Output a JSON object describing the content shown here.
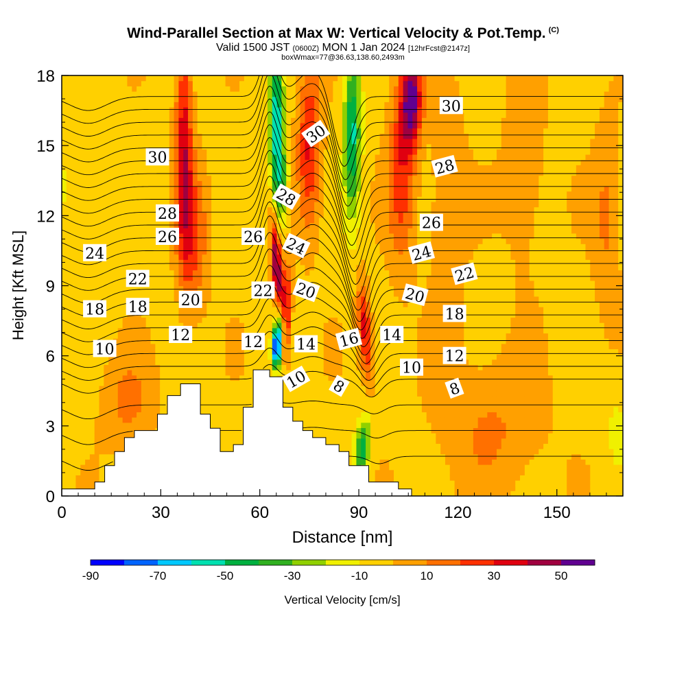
{
  "header": {
    "title": "Wind-Parallel Section at Max W: Vertical Velocity & Pot.Temp.",
    "title_mark": "(C)",
    "valid_prefix": "Valid 1500 JST",
    "valid_utc": "(0600Z)",
    "valid_date": "MON 1 Jan 2024",
    "forecast": "[12hrFcst@2147z]",
    "box_info": "boxWmax=77@36.63,138.60,2493m"
  },
  "chart_data": {
    "type": "heatmap",
    "xlabel": "Distance [nm]",
    "ylabel": "Height [Kft MSL]",
    "xlim": [
      0,
      170
    ],
    "ylim": [
      0,
      18
    ],
    "xticks": [
      0,
      30,
      60,
      90,
      120,
      150
    ],
    "yticks": [
      0,
      3,
      6,
      9,
      12,
      15,
      18
    ],
    "colorbar": {
      "label": "Vertical Velocity [cm/s]",
      "levels": [
        -90,
        -80,
        -70,
        -60,
        -50,
        -40,
        -30,
        -20,
        -10,
        0,
        10,
        20,
        30,
        40,
        50,
        60
      ],
      "tick_labels": [
        "-90",
        "-70",
        "-50",
        "-30",
        "-10",
        "10",
        "30",
        "50"
      ],
      "tick_values": [
        -90,
        -70,
        -50,
        -30,
        -10,
        10,
        30,
        50
      ],
      "colors": [
        "#0000ff",
        "#0064ff",
        "#00c8ff",
        "#00e0b0",
        "#00b040",
        "#30b020",
        "#90d000",
        "#f0f000",
        "#ffd000",
        "#ffa000",
        "#ff7000",
        "#ff3000",
        "#e00010",
        "#a00040",
        "#600090"
      ]
    },
    "terrain": [
      [
        0,
        0.3
      ],
      [
        10,
        0.3
      ],
      [
        10,
        0.6
      ],
      [
        13,
        0.6
      ],
      [
        13,
        1.3
      ],
      [
        16,
        1.3
      ],
      [
        16,
        1.9
      ],
      [
        19,
        1.9
      ],
      [
        19,
        2.5
      ],
      [
        22,
        2.5
      ],
      [
        22,
        2.8
      ],
      [
        29,
        2.8
      ],
      [
        29,
        3.5
      ],
      [
        32,
        3.5
      ],
      [
        32,
        4.3
      ],
      [
        36,
        4.3
      ],
      [
        36,
        4.8
      ],
      [
        42,
        4.8
      ],
      [
        42,
        3.5
      ],
      [
        45,
        3.5
      ],
      [
        45,
        2.9
      ],
      [
        48,
        2.9
      ],
      [
        48,
        1.9
      ],
      [
        52,
        1.9
      ],
      [
        52,
        2.2
      ],
      [
        55,
        2.2
      ],
      [
        55,
        3.8
      ],
      [
        58,
        3.8
      ],
      [
        58,
        5.4
      ],
      [
        63,
        5.4
      ],
      [
        63,
        5.1
      ],
      [
        67,
        5.1
      ],
      [
        67,
        3.8
      ],
      [
        70,
        3.8
      ],
      [
        70,
        3.2
      ],
      [
        73,
        3.2
      ],
      [
        73,
        2.8
      ],
      [
        76,
        2.8
      ],
      [
        76,
        2.5
      ],
      [
        80,
        2.5
      ],
      [
        80,
        2.2
      ],
      [
        84,
        2.2
      ],
      [
        84,
        1.9
      ],
      [
        87,
        1.9
      ],
      [
        87,
        1.3
      ],
      [
        93,
        1.3
      ],
      [
        93,
        0.6
      ],
      [
        102,
        0.6
      ],
      [
        102,
        0.3
      ],
      [
        106,
        0.3
      ],
      [
        106,
        0
      ],
      [
        170,
        0
      ]
    ],
    "w_features": [
      {
        "x": 37,
        "y": 15,
        "w": 40,
        "sx": 2.5,
        "sy": 5
      },
      {
        "x": 40,
        "y": 11,
        "w": 25,
        "sx": 4,
        "sy": 3
      },
      {
        "x": 65,
        "y": 10,
        "w": 60,
        "sx": 1.5,
        "sy": 2.4,
        "tilt": -0.4
      },
      {
        "x": 68,
        "y": 8,
        "w": 40,
        "sx": 1.5,
        "sy": 2
      },
      {
        "x": 65,
        "y": 6.3,
        "w": -80,
        "sx": 1.2,
        "sy": 0.8
      },
      {
        "x": 66,
        "y": 7.2,
        "w": -45,
        "sx": 1.5,
        "sy": 1
      },
      {
        "x": 65,
        "y": 16,
        "w": -55,
        "sx": 2.2,
        "sy": 3
      },
      {
        "x": 66,
        "y": 13,
        "w": -30,
        "sx": 2.5,
        "sy": 2,
        "tilt": 0.3
      },
      {
        "x": 75,
        "y": 15,
        "w": 35,
        "sx": 3.5,
        "sy": 3.5
      },
      {
        "x": 88,
        "y": 15.5,
        "w": -50,
        "sx": 2.5,
        "sy": 3.5
      },
      {
        "x": 92,
        "y": 7,
        "w": 40,
        "sx": 2,
        "sy": 2,
        "tilt": -0.5
      },
      {
        "x": 91,
        "y": 2,
        "w": -45,
        "sx": 2.2,
        "sy": 1.3,
        "tilt": 0.6
      },
      {
        "x": 106,
        "y": 17,
        "w": 55,
        "sx": 3,
        "sy": 2
      },
      {
        "x": 103,
        "y": 14,
        "w": 30,
        "sx": 4,
        "sy": 4
      },
      {
        "x": 117,
        "y": 12,
        "w": 15,
        "sx": 5,
        "sy": 5
      },
      {
        "x": 140,
        "y": 14,
        "w": 12,
        "sx": 6,
        "sy": 4
      },
      {
        "x": 165,
        "y": 12,
        "w": 15,
        "sx": 4,
        "sy": 4
      },
      {
        "x": 20,
        "y": 4,
        "w": 15,
        "sx": 8,
        "sy": 2
      },
      {
        "x": 130,
        "y": 3,
        "w": 14,
        "sx": 15,
        "sy": 3
      },
      {
        "x": 168,
        "y": 3,
        "w": -10,
        "sx": 3,
        "sy": 2
      },
      {
        "x": 2,
        "y": 13,
        "w": -8,
        "sx": 6,
        "sy": 6
      }
    ],
    "theta_levels": [
      4,
      6,
      8,
      10,
      11,
      12,
      13,
      14,
      15,
      16,
      17,
      18,
      19,
      20,
      21,
      22,
      23,
      24,
      25,
      26,
      27,
      28,
      29,
      30,
      31,
      32
    ],
    "contour_labels": [
      {
        "text": "30",
        "x": 29,
        "y": 14.5,
        "rot": 0
      },
      {
        "text": "28",
        "x": 32,
        "y": 12.1,
        "rot": 0
      },
      {
        "text": "26",
        "x": 32,
        "y": 11.1,
        "rot": 0
      },
      {
        "text": "24",
        "x": 10,
        "y": 10.4,
        "rot": 0
      },
      {
        "text": "22",
        "x": 23,
        "y": 9.3,
        "rot": 0
      },
      {
        "text": "20",
        "x": 39,
        "y": 8.4,
        "rot": 0
      },
      {
        "text": "18",
        "x": 10,
        "y": 8,
        "rot": 0
      },
      {
        "text": "18",
        "x": 23,
        "y": 8.1,
        "rot": 0
      },
      {
        "text": "12",
        "x": 36,
        "y": 6.9,
        "rot": 0
      },
      {
        "text": "10",
        "x": 13,
        "y": 6.3,
        "rot": 0
      },
      {
        "text": "30",
        "x": 77,
        "y": 15.5,
        "rot": -35
      },
      {
        "text": "28",
        "x": 68,
        "y": 12.8,
        "rot": 30
      },
      {
        "text": "26",
        "x": 58,
        "y": 11.1,
        "rot": 0
      },
      {
        "text": "24",
        "x": 71,
        "y": 10.7,
        "rot": 25
      },
      {
        "text": "22",
        "x": 61,
        "y": 8.8,
        "rot": 0
      },
      {
        "text": "20",
        "x": 74,
        "y": 8.8,
        "rot": 20
      },
      {
        "text": "12",
        "x": 58,
        "y": 6.6,
        "rot": 0
      },
      {
        "text": "14",
        "x": 74,
        "y": 6.5,
        "rot": 0
      },
      {
        "text": "10",
        "x": 71,
        "y": 5,
        "rot": -30
      },
      {
        "text": "8",
        "x": 84,
        "y": 4.7,
        "rot": 30
      },
      {
        "text": "16",
        "x": 87,
        "y": 6.7,
        "rot": -15
      },
      {
        "text": "14",
        "x": 100,
        "y": 6.9,
        "rot": 0
      },
      {
        "text": "30",
        "x": 118,
        "y": 16.7,
        "rot": 0
      },
      {
        "text": "28",
        "x": 116,
        "y": 14.1,
        "rot": -15
      },
      {
        "text": "26",
        "x": 112,
        "y": 11.7,
        "rot": 0
      },
      {
        "text": "24",
        "x": 109,
        "y": 10.4,
        "rot": -15
      },
      {
        "text": "22",
        "x": 122,
        "y": 9.5,
        "rot": -15
      },
      {
        "text": "20",
        "x": 107,
        "y": 8.6,
        "rot": 15
      },
      {
        "text": "18",
        "x": 119,
        "y": 7.8,
        "rot": 0
      },
      {
        "text": "12",
        "x": 119,
        "y": 6,
        "rot": 0
      },
      {
        "text": "10",
        "x": 106,
        "y": 5.5,
        "rot": 0
      },
      {
        "text": "8",
        "x": 119,
        "y": 4.6,
        "rot": -20
      }
    ]
  }
}
